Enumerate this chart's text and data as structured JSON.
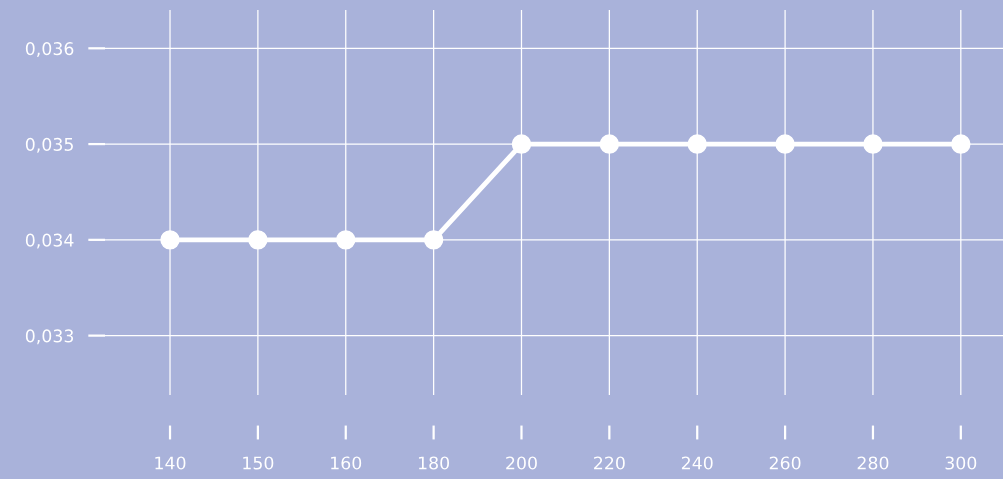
{
  "chart_data": {
    "type": "line",
    "categories": [
      "140",
      "150",
      "160",
      "180",
      "200",
      "220",
      "240",
      "260",
      "280",
      "300"
    ],
    "series": [
      {
        "color": "#ffffff",
        "values": [
          0.034,
          0.034,
          0.034,
          0.034,
          0.035,
          0.035,
          0.035,
          0.035,
          0.035,
          0.035
        ]
      }
    ],
    "ylim": [
      0.03238,
      0.0364
    ],
    "yticks": [
      {
        "value": 0.033,
        "label": "0,033"
      },
      {
        "value": 0.034,
        "label": "0,034"
      },
      {
        "value": 0.035,
        "label": "0,035"
      },
      {
        "value": 0.036,
        "label": "0,036"
      }
    ],
    "grid": true,
    "marker": "circle",
    "line_style": "solid",
    "legend": false
  }
}
